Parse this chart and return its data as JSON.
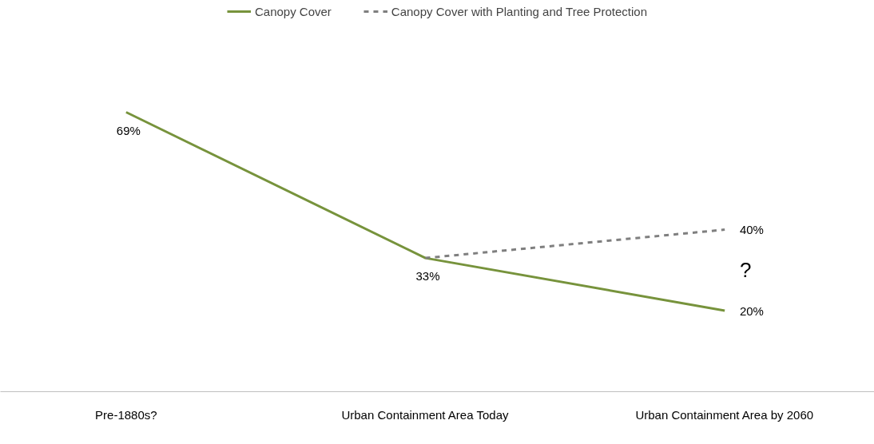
{
  "chart_data": {
    "type": "line",
    "categories": [
      "Pre-1880s?",
      "Urban Containment Area Today",
      "Urban Containment Area by 2060"
    ],
    "series": [
      {
        "name": "Canopy Cover",
        "color": "#77933c",
        "values": [
          69,
          33,
          20
        ],
        "value_labels": [
          "69%",
          "33%",
          "20%"
        ]
      },
      {
        "name": "Canopy Cover with Planting and Tree Protection",
        "color": "#7f7f7f",
        "values": [
          null,
          33,
          40
        ],
        "value_labels": [
          null,
          null,
          "40%"
        ],
        "line_style": "dashed"
      }
    ],
    "annotations": [
      "?"
    ],
    "legend": "top",
    "grid": false,
    "tick_labels": "x"
  }
}
